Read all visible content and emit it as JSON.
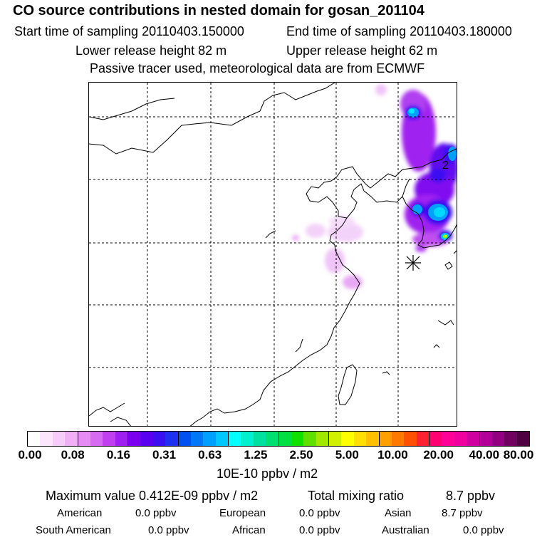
{
  "header": {
    "title": "CO  source contributions in nested domain for gosan_201104",
    "start_time": "Start time of sampling 20110403.150000",
    "end_time": "End time of sampling 20110403.180000",
    "lower_release": "Lower release height   82 m",
    "upper_release": "Upper release height   62 m",
    "tracer_note": "Passive tracer used, meteorological data are from ECMWF"
  },
  "map": {
    "contour_label": "2",
    "colors": {
      "coast": "#000000",
      "grid": "#000000",
      "plume_light": "#f0c8f8",
      "plume_mid": "#a020f0",
      "plume_dark": "#3010e0",
      "plume_core": "#00aaff",
      "plume_hot": "#80ff00"
    }
  },
  "colorbar": {
    "colors": [
      "#ffffff",
      "#fbe6fc",
      "#f6ccf9",
      "#f0b0f6",
      "#e68af4",
      "#d66af0",
      "#c040f0",
      "#a020f0",
      "#7a00f0",
      "#5a00f0",
      "#3a10f0",
      "#2030f0",
      "#0050f0",
      "#0078f8",
      "#00a0ff",
      "#00c8ff",
      "#00ffff",
      "#00f0d0",
      "#00e0a0",
      "#00e070",
      "#00e040",
      "#10e000",
      "#60e000",
      "#a0e800",
      "#d0f000",
      "#ffff00",
      "#ffe000",
      "#ffc000",
      "#ffa000",
      "#ff7800",
      "#ff5000",
      "#ff2030",
      "#ff0070",
      "#ff0098",
      "#f000a0",
      "#d000a0",
      "#b00098",
      "#900080",
      "#700060",
      "#500040"
    ],
    "tick_labels": [
      "0.00",
      "0.08",
      "0.16",
      "0.31",
      "0.63",
      "1.25",
      "2.50",
      "5.00",
      "10.00",
      "20.00",
      "40.00",
      "80.00"
    ],
    "units": "10E-10 ppbv / m2"
  },
  "stats": {
    "maximum": "Maximum value  0.412E-09 ppbv / m2",
    "total_label": "Total mixing ratio",
    "total_value": "8.7 ppbv",
    "regions": [
      {
        "name": "American",
        "value": "0.0 ppbv"
      },
      {
        "name": "European",
        "value": "0.0 ppbv"
      },
      {
        "name": "Asian",
        "value": "8.7 ppbv"
      },
      {
        "name": "South American",
        "value": "0.0 ppbv"
      },
      {
        "name": "African",
        "value": "0.0 ppbv"
      },
      {
        "name": "Australian",
        "value": "0.0 ppbv"
      }
    ]
  }
}
